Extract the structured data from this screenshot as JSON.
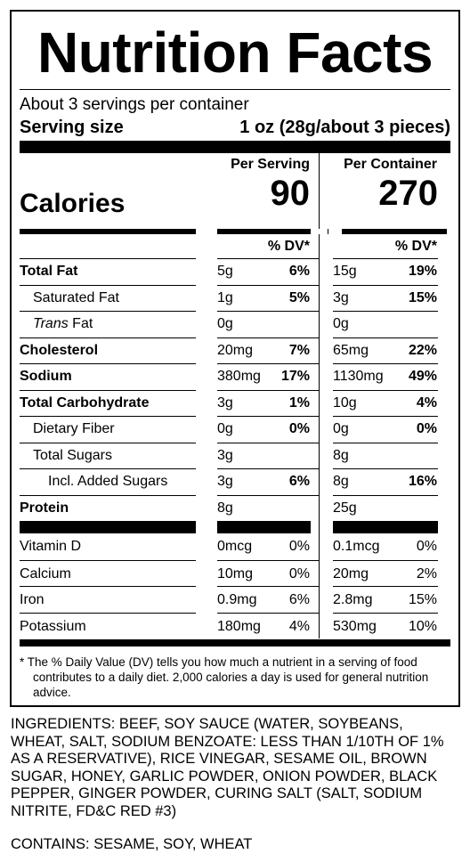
{
  "label": {
    "title": "Nutrition Facts",
    "servings_per_container": "About 3 servings per container",
    "serving_size_label": "Serving size",
    "serving_size_value": "1 oz (28g/about 3 pieces)",
    "calories_label": "Calories",
    "per_serving_header": "Per Serving",
    "per_container_header": "Per Container",
    "calories_per_serving": "90",
    "calories_per_container": "270",
    "dv_header": "% DV*",
    "nutrients": [
      {
        "name": "Total Fat",
        "ps_amount": "5g",
        "ps_dv": "6%",
        "pc_amount": "15g",
        "pc_dv": "19%"
      },
      {
        "name": "Saturated Fat",
        "ps_amount": "1g",
        "ps_dv": "5%",
        "pc_amount": "3g",
        "pc_dv": "15%"
      },
      {
        "name_italic": "Trans",
        "name_rest": " Fat",
        "ps_amount": "0g",
        "ps_dv": "",
        "pc_amount": "0g",
        "pc_dv": ""
      },
      {
        "name": "Cholesterol",
        "ps_amount": "20mg",
        "ps_dv": "7%",
        "pc_amount": "65mg",
        "pc_dv": "22%"
      },
      {
        "name": "Sodium",
        "ps_amount": "380mg",
        "ps_dv": "17%",
        "pc_amount": "1130mg",
        "pc_dv": "49%"
      },
      {
        "name": "Total Carbohydrate",
        "ps_amount": "3g",
        "ps_dv": "1%",
        "pc_amount": "10g",
        "pc_dv": "4%"
      },
      {
        "name": "Dietary Fiber",
        "ps_amount": "0g",
        "ps_dv": "0%",
        "pc_amount": "0g",
        "pc_dv": "0%"
      },
      {
        "name": "Total Sugars",
        "ps_amount": "3g",
        "ps_dv": "",
        "pc_amount": "8g",
        "pc_dv": ""
      },
      {
        "name": "Incl. Added Sugars",
        "ps_amount": "3g",
        "ps_dv": "6%",
        "pc_amount": "8g",
        "pc_dv": "16%"
      },
      {
        "name": "Protein",
        "ps_amount": "8g",
        "ps_dv": "",
        "pc_amount": "25g",
        "pc_dv": ""
      }
    ],
    "vitamins": [
      {
        "name": "Vitamin D",
        "ps_amount": "0mcg",
        "ps_dv": "0%",
        "pc_amount": "0.1mcg",
        "pc_dv": "0%"
      },
      {
        "name": "Calcium",
        "ps_amount": "10mg",
        "ps_dv": "0%",
        "pc_amount": "20mg",
        "pc_dv": "2%"
      },
      {
        "name": "Iron",
        "ps_amount": "0.9mg",
        "ps_dv": "6%",
        "pc_amount": "2.8mg",
        "pc_dv": "15%"
      },
      {
        "name": "Potassium",
        "ps_amount": "180mg",
        "ps_dv": "4%",
        "pc_amount": "530mg",
        "pc_dv": "10%"
      }
    ],
    "footnote": "* The % Daily Value (DV) tells you how much a nutrient in a serving of food contributes to a daily diet. 2,000 calories a day is used for general nutrition advice."
  },
  "ingredients": "INGREDIENTS: BEEF, SOY SAUCE (WATER, SOYBEANS, WHEAT, SALT, SODIUM BENZOATE: LESS THAN 1/10TH OF 1% AS A RESERVATIVE), RICE VINEGAR, SESAME OIL, BROWN SUGAR, HONEY, GARLIC POWDER, ONION POWDER, BLACK PEPPER, GINGER POWDER, CURING SALT (SALT, SODIUM NITRITE, FD&C RED #3)",
  "contains": "CONTAINS: SESAME, SOY, WHEAT"
}
